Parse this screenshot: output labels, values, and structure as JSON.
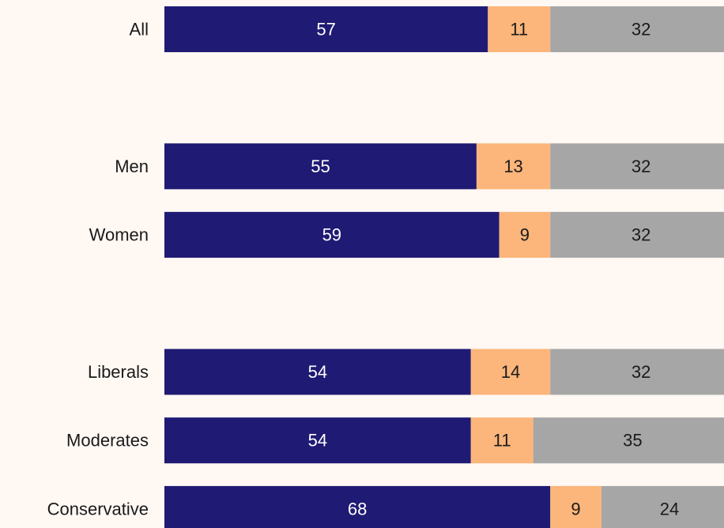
{
  "chart_data": {
    "type": "stacked-bar",
    "orientation": "horizontal",
    "categories": [
      "All",
      null,
      "Men",
      "Women",
      null,
      "Liberals",
      "Moderates",
      "Conservative"
    ],
    "series": [
      {
        "color": "#1f1a73",
        "values": [
          57,
          null,
          55,
          59,
          null,
          54,
          54,
          68
        ]
      },
      {
        "color": "#fcb57a",
        "values": [
          11,
          null,
          13,
          9,
          null,
          14,
          11,
          9
        ]
      },
      {
        "color": "#a6a6a6",
        "values": [
          32,
          null,
          32,
          32,
          null,
          32,
          35,
          24
        ]
      }
    ],
    "xlim": [
      0,
      100
    ]
  }
}
